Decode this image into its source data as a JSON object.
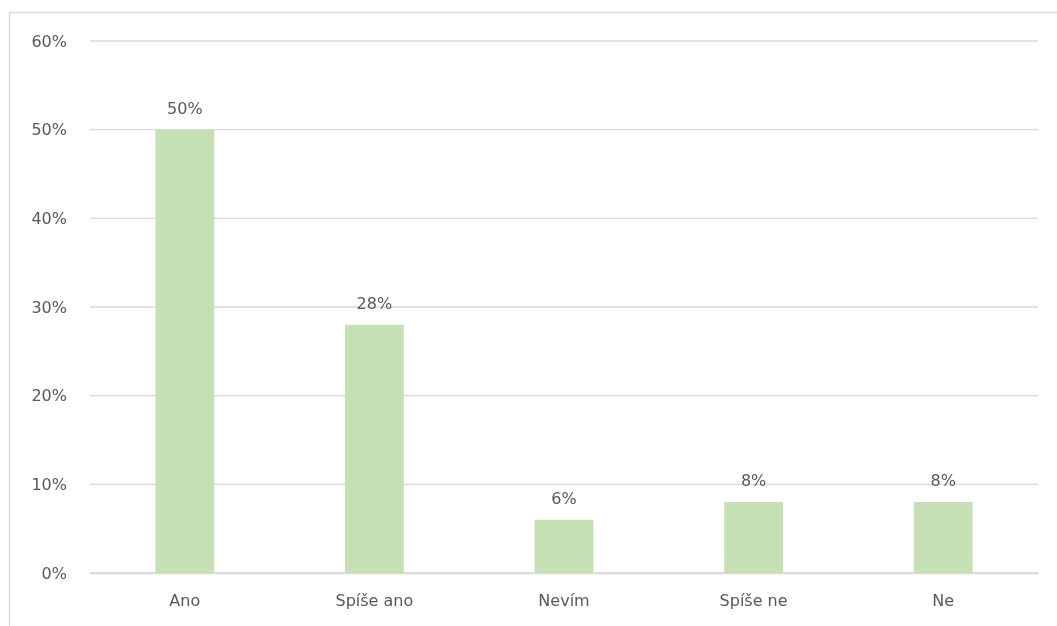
{
  "chart_data": {
    "type": "bar",
    "categories": [
      "Ano",
      "Spíše ano",
      "Nevím",
      "Spíše ne",
      "Ne"
    ],
    "values": [
      50,
      28,
      6,
      8,
      8
    ],
    "value_labels": [
      "50%",
      "28%",
      "6%",
      "8%",
      "8%"
    ],
    "color": "#c5e0b4",
    "ylim": [
      0,
      60
    ],
    "yticks": [
      {
        "value": 0,
        "label": "0%"
      },
      {
        "value": 10,
        "label": "10%"
      },
      {
        "value": 20,
        "label": "20%"
      },
      {
        "value": 30,
        "label": "30%"
      },
      {
        "value": 40,
        "label": "40%"
      },
      {
        "value": 50,
        "label": "50%"
      },
      {
        "value": 60,
        "label": "60%"
      }
    ],
    "grid": "y"
  }
}
